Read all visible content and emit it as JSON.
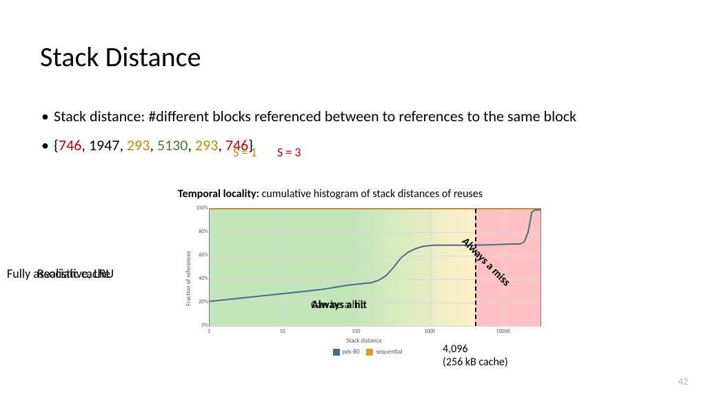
{
  "title": "Stack Distance",
  "bullets": [
    "Stack distance: #different blocks referenced between to references to the same block"
  ],
  "annot_s1": "S = 1",
  "annot_s3": "S = 3",
  "annot_s1_color": "#c08a00",
  "annot_s3_color": "#c00000",
  "sequence": [
    {
      "text": "{",
      "color": "#000000"
    },
    {
      "text": "746",
      "color": "#c00000"
    },
    {
      "text": ", ",
      "color": "#000000"
    },
    {
      "text": "1947",
      "color": "#000000"
    },
    {
      "text": ", ",
      "color": "#000000"
    },
    {
      "text": "293",
      "color": "#c08a00"
    },
    {
      "text": ", ",
      "color": "#000000"
    },
    {
      "text": "5130",
      "color": "#4a7a2f"
    },
    {
      "text": ", ",
      "color": "#000000"
    },
    {
      "text": "293",
      "color": "#c08a00"
    },
    {
      "text": ", ",
      "color": "#000000"
    },
    {
      "text": "746",
      "color": "#c00000"
    },
    {
      "text": "}",
      "color": "#000000"
    }
  ],
  "chart": {
    "title_bold": "Temporal locality:",
    "title_rest": " cumulative histogram of stack distances of reuses",
    "ylabel": "Fraction of references",
    "xlabel": "Stack distance",
    "x_log_ticks": [
      1,
      10,
      100,
      1000,
      10000
    ],
    "x_log_min": 0,
    "x_log_max": 4.5,
    "y_ticks_pct": [
      0,
      20,
      40,
      60,
      80,
      100
    ],
    "ylim": [
      0,
      100
    ],
    "grid_color": "#d8d8d8",
    "border_color": "#808080",
    "shade_hit_color": "rgba(120,200,100,0.45)",
    "shade_miss_color": "rgba(255,120,120,0.45)",
    "partition_value": 4096,
    "partition_log": 3.612,
    "series": {
      "pds80": {
        "color": "#4a6b8a",
        "width": 2,
        "points_log_pct": [
          [
            0.0,
            21
          ],
          [
            0.3,
            23
          ],
          [
            0.6,
            25
          ],
          [
            0.9,
            27
          ],
          [
            1.2,
            29
          ],
          [
            1.5,
            31
          ],
          [
            1.7,
            33
          ],
          [
            1.9,
            35
          ],
          [
            2.05,
            36
          ],
          [
            2.2,
            37
          ],
          [
            2.3,
            39
          ],
          [
            2.4,
            43
          ],
          [
            2.5,
            50
          ],
          [
            2.6,
            58
          ],
          [
            2.7,
            63
          ],
          [
            2.8,
            66
          ],
          [
            2.9,
            68
          ],
          [
            3.05,
            69
          ],
          [
            3.3,
            69
          ],
          [
            3.6,
            69
          ],
          [
            3.9,
            69.5
          ],
          [
            4.1,
            70
          ],
          [
            4.22,
            70
          ],
          [
            4.28,
            72
          ],
          [
            4.33,
            80
          ],
          [
            4.36,
            90
          ],
          [
            4.38,
            97
          ],
          [
            4.42,
            99
          ],
          [
            4.5,
            99
          ]
        ]
      },
      "sequential": {
        "color": "#e09a2a",
        "width": 2,
        "points_log_pct": [
          [
            0.0,
            100
          ],
          [
            4.5,
            100
          ]
        ]
      }
    },
    "legend": [
      {
        "label": "pds-80",
        "color": "#4a6b8a"
      },
      {
        "label": "sequential",
        "color": "#e09a2a"
      }
    ]
  },
  "overlay_hit": "Always a hit",
  "overlay_hit_sub": "Can be a hit",
  "overlay_miss": "Always a miss",
  "side_label_1": "Fully associative, LRU",
  "side_label_2": "Realistic cache",
  "below_partition_l1": "4,096",
  "below_partition_l2": "(256 kB cache)",
  "page_number": "42"
}
